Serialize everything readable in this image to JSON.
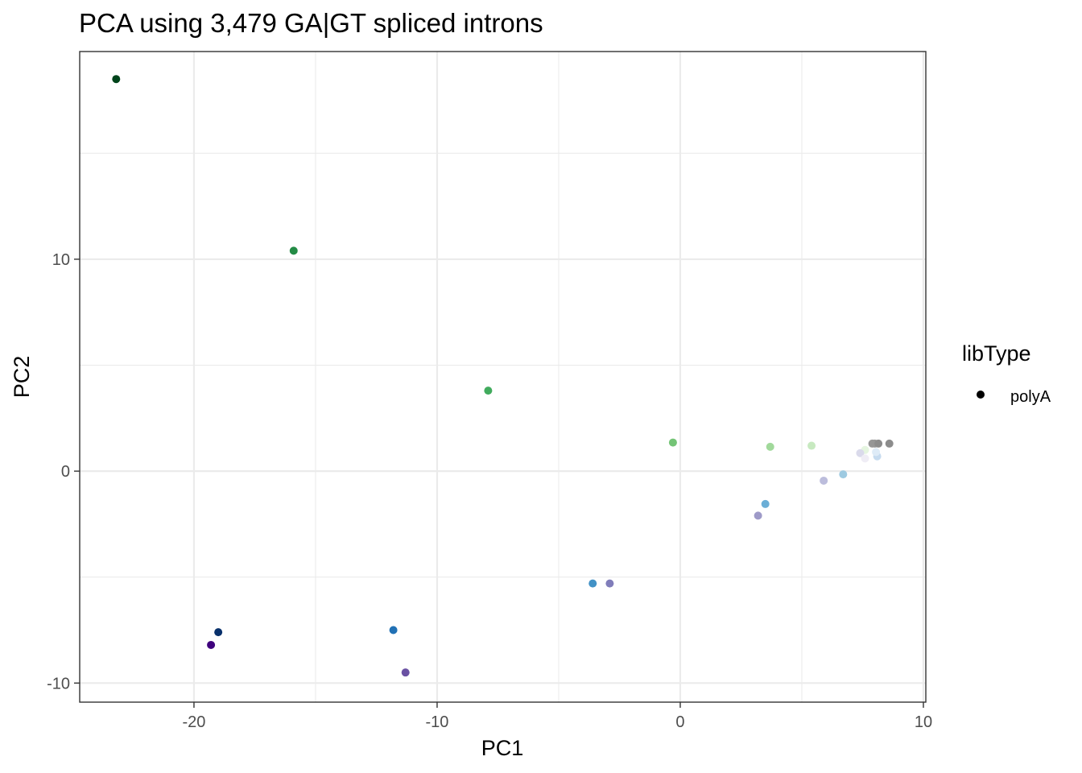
{
  "chart_data": {
    "type": "scatter",
    "title": "PCA using 3,479 GA|GT spliced introns",
    "xlabel": "PC1",
    "ylabel": "PC2",
    "xlim": [
      -24.7,
      10.1
    ],
    "ylim": [
      -10.9,
      19.8
    ],
    "x_major_ticks": [
      -20,
      -10,
      0,
      10
    ],
    "x_minor_ticks": [
      -15,
      -5,
      5
    ],
    "y_major_ticks": [
      -10,
      0,
      10
    ],
    "y_minor_ticks": [
      -5,
      5,
      15
    ],
    "x_tick_labels": [
      "-20",
      "-10",
      "0",
      "10"
    ],
    "y_tick_labels": [
      "-10",
      "0",
      "10"
    ],
    "grid": true,
    "legend": {
      "title": "libType",
      "position": "right",
      "entries": [
        {
          "label": "polyA",
          "color": "#000000",
          "shape": "circle"
        }
      ]
    },
    "points": [
      {
        "x": -23.2,
        "y": 18.5,
        "color": "#00441b"
      },
      {
        "x": -15.9,
        "y": 10.4,
        "color": "#238b45"
      },
      {
        "x": -7.9,
        "y": 3.8,
        "color": "#41ab5d"
      },
      {
        "x": -0.3,
        "y": 1.35,
        "color": "#74c476"
      },
      {
        "x": 3.7,
        "y": 1.15,
        "color": "#a1d99b"
      },
      {
        "x": 5.4,
        "y": 1.2,
        "color": "#c7e9c0"
      },
      {
        "x": 7.6,
        "y": 1.0,
        "color": "#e5f5e0"
      },
      {
        "x": -19.3,
        "y": -8.2,
        "color": "#3f007d"
      },
      {
        "x": -19.0,
        "y": -7.6,
        "color": "#08306b"
      },
      {
        "x": -11.8,
        "y": -7.5,
        "color": "#2171b5"
      },
      {
        "x": -11.3,
        "y": -9.5,
        "color": "#6a51a3"
      },
      {
        "x": -3.6,
        "y": -5.3,
        "color": "#4292c6"
      },
      {
        "x": -2.9,
        "y": -5.3,
        "color": "#807dba"
      },
      {
        "x": 3.2,
        "y": -2.1,
        "color": "#9e9ac8"
      },
      {
        "x": 3.5,
        "y": -1.55,
        "color": "#6baed6"
      },
      {
        "x": 5.9,
        "y": -0.45,
        "color": "#bcbddc"
      },
      {
        "x": 6.7,
        "y": -0.15,
        "color": "#9ecae1"
      },
      {
        "x": 7.4,
        "y": 0.85,
        "color": "#dadaeb"
      },
      {
        "x": 7.6,
        "y": 0.6,
        "color": "#efedf5"
      },
      {
        "x": 8.1,
        "y": 0.7,
        "color": "#c6dbef"
      },
      {
        "x": 8.05,
        "y": 0.9,
        "color": "#deebf7"
      },
      {
        "x": 7.9,
        "y": 1.3,
        "color": "#969696"
      },
      {
        "x": 8.0,
        "y": 1.3,
        "color": "#969696"
      },
      {
        "x": 8.15,
        "y": 1.3,
        "color": "#8c8c8c"
      },
      {
        "x": 8.6,
        "y": 1.3,
        "color": "#8c8c8c"
      }
    ]
  }
}
